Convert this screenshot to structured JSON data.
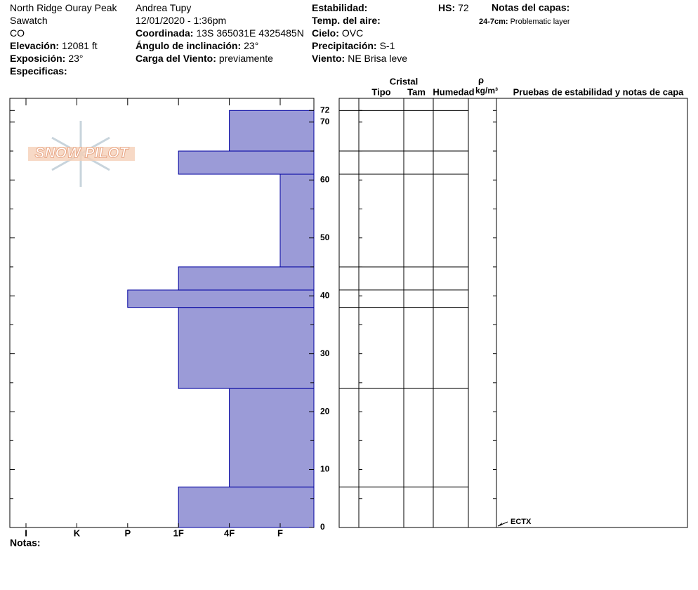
{
  "header": {
    "columns": [
      [
        {
          "value": "North Ridge Ouray Peak"
        },
        {
          "value": "Sawatch"
        },
        {
          "value": "CO"
        },
        {
          "label": "Elevación:",
          "value": "12081 ft"
        },
        {
          "label": "Exposición:",
          "value": "23°"
        },
        {
          "label": "Especificas:"
        }
      ],
      [
        {
          "value": "Andrea Tupy"
        },
        {
          "value": "12/01/2020 - 1:36pm"
        },
        {
          "label": "Coordinada:",
          "value": "13S 365031E 4325485N"
        },
        {
          "label": "Ángulo de inclinación:",
          "value": "23°"
        },
        {
          "label": "Carga del Viento:",
          "value": "previamente"
        }
      ],
      [
        {
          "label": "Estabilidad:"
        },
        {
          "label": "Temp. del aire:"
        },
        {
          "label": "Cielo:",
          "value": "OVC"
        },
        {
          "label": "Precipitación:",
          "value": "S-1"
        },
        {
          "label": "Viento:",
          "value": "NE Brisa leve"
        }
      ],
      [
        {
          "label": "HS:",
          "value": 72
        }
      ]
    ],
    "notes": {
      "title": "Notas del capas:",
      "items": [
        {
          "label": "24-7cm:",
          "text": "Problematic layer"
        }
      ]
    },
    "logo": "SNOW PILOT"
  },
  "chart_data": {
    "type": "bar",
    "orientation": "horizontal",
    "categories": [
      "I",
      "K",
      "P",
      "1F",
      "4F",
      "F"
    ],
    "layers": [
      {
        "bottom": 0,
        "top": 7,
        "hardness": "1F"
      },
      {
        "bottom": 7,
        "top": 24,
        "hardness": "4F"
      },
      {
        "bottom": 24,
        "top": 38,
        "hardness": "1F"
      },
      {
        "bottom": 38,
        "top": 41,
        "hardness": "P"
      },
      {
        "bottom": 41,
        "top": 45,
        "hardness": "1F"
      },
      {
        "bottom": 45,
        "top": 61,
        "hardness": "F"
      },
      {
        "bottom": 61,
        "top": 65,
        "hardness": "1F"
      },
      {
        "bottom": 65,
        "top": 72,
        "hardness": "4F"
      }
    ],
    "color": "#9b9bd7",
    "edge_color": "#0000a0",
    "ylim": [
      0,
      74.1
    ],
    "yticks": [
      0,
      10,
      20,
      30,
      40,
      50,
      60,
      70,
      72
    ],
    "minor_yticks": [
      5,
      15,
      25,
      35,
      45,
      55,
      65
    ],
    "table": {
      "group": "Cristal",
      "columns": [
        "Tipo",
        "Tam",
        "Humedad"
      ],
      "density_symbol": "ρ",
      "density_unit": "kg/m³",
      "tests_title": "Pruebas de estabilidad y notas de capa"
    },
    "tests": [
      {
        "depth": 0,
        "label": "ECTX"
      }
    ],
    "footer": "Notas:"
  }
}
